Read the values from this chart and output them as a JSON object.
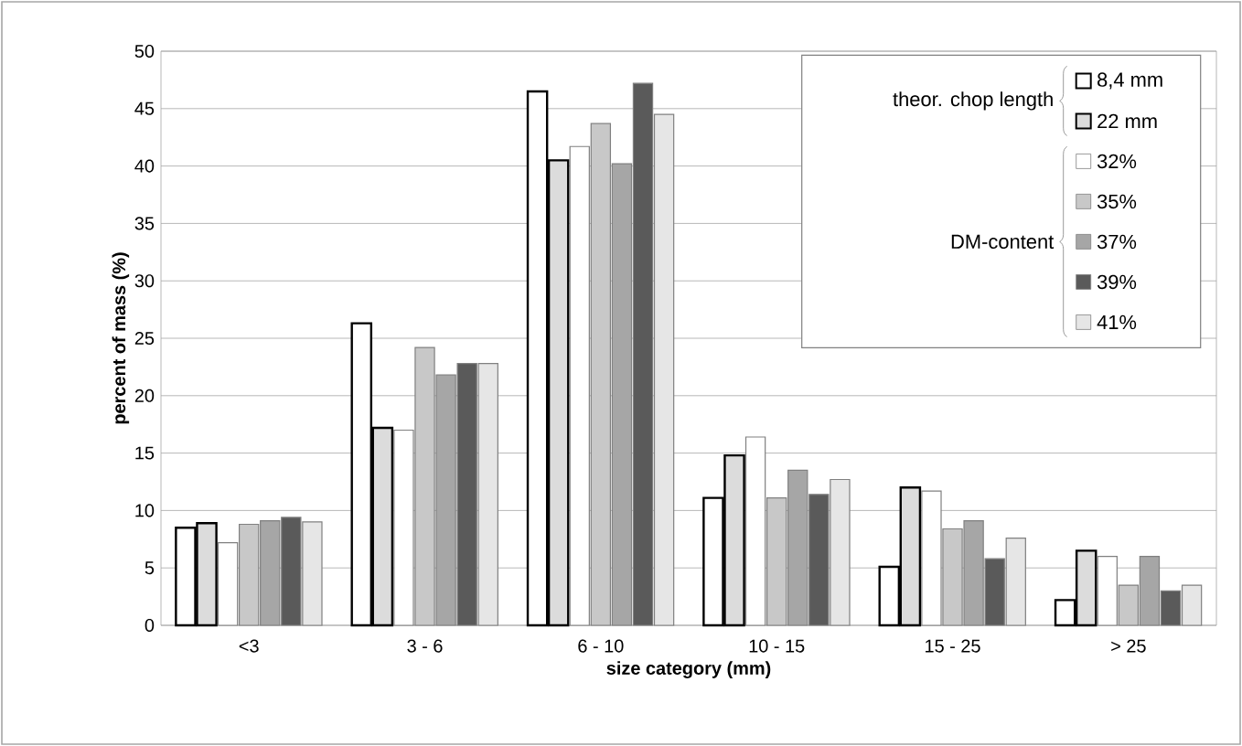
{
  "chart_data": {
    "type": "bar",
    "xlabel": "size category (mm)",
    "ylabel": "percent of mass (%)",
    "categories": [
      "<3",
      "3 - 6",
      "6 - 10",
      "10 - 15",
      "15 - 25",
      "> 25"
    ],
    "series": [
      {
        "name": "8,4 mm",
        "color": "#ffffff",
        "values": [
          8.5,
          26.3,
          46.5,
          11.1,
          5.1,
          2.2
        ]
      },
      {
        "name": "22 mm",
        "color": "#dcdcdc",
        "values": [
          8.9,
          17.2,
          40.5,
          14.8,
          12.0,
          6.5
        ]
      },
      {
        "name": "32%",
        "color": "#ffffff",
        "values": [
          7.2,
          17.0,
          41.7,
          16.4,
          11.7,
          6.0
        ]
      },
      {
        "name": "35%",
        "color": "#c8c8c8",
        "values": [
          8.8,
          24.2,
          43.7,
          11.1,
          8.4,
          3.5
        ]
      },
      {
        "name": "37%",
        "color": "#a6a6a6",
        "values": [
          9.1,
          21.8,
          40.2,
          13.5,
          9.1,
          6.0
        ]
      },
      {
        "name": "39%",
        "color": "#5a5a5a",
        "values": [
          9.4,
          22.8,
          47.2,
          11.4,
          5.8,
          3.0
        ]
      },
      {
        "name": "41%",
        "color": "#e6e6e6",
        "values": [
          9.0,
          22.8,
          44.5,
          12.7,
          7.6,
          3.5
        ]
      }
    ],
    "annotations": [
      "theor. chop length",
      "DM-content"
    ],
    "ylim": [
      0,
      50
    ],
    "yticks": [
      0,
      5,
      10,
      15,
      20,
      25,
      30,
      35,
      40,
      45,
      50
    ],
    "grid": "y",
    "legend": "top right"
  }
}
